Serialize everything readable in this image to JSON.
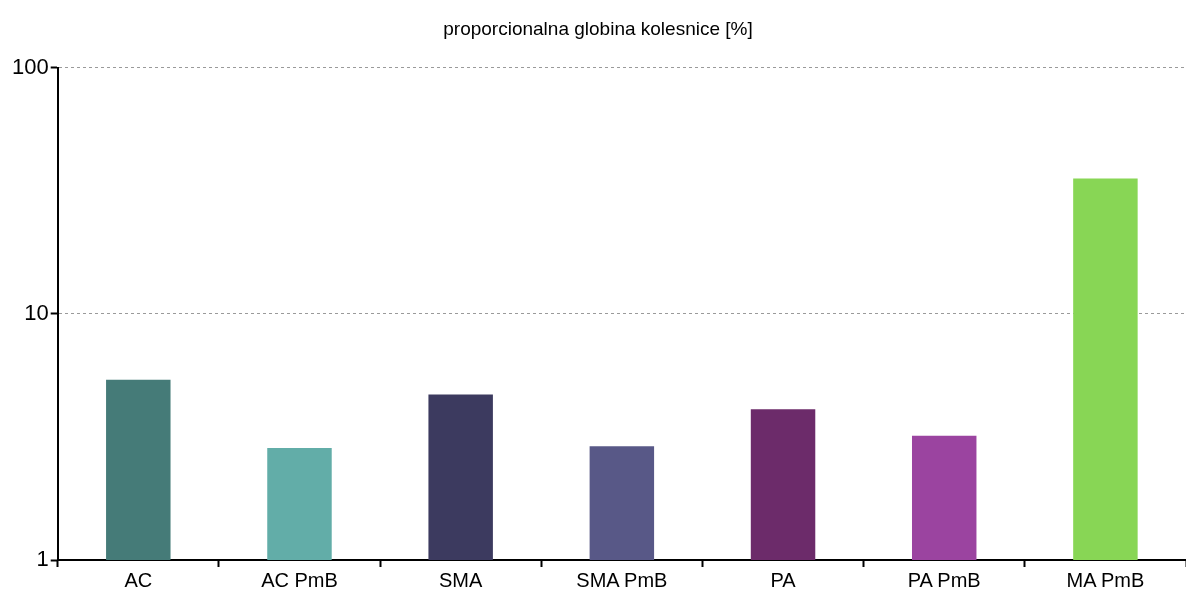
{
  "chart_data": {
    "type": "bar",
    "title": "proporcionalna globina kolesnice [%]",
    "categories": [
      "AC",
      "AC PmB",
      "SMA",
      "SMA PmB",
      "PA",
      "PA PmB",
      "MA PmB"
    ],
    "values": [
      5.4,
      2.85,
      4.7,
      2.9,
      4.1,
      3.2,
      35.5
    ],
    "colors": [
      "#457b78",
      "#62ada8",
      "#3c3a5f",
      "#585887",
      "#6c2b6a",
      "#9b44a0",
      "#88d655"
    ],
    "ylim": [
      1,
      100
    ],
    "yticks": [
      1,
      10,
      100
    ],
    "log": "y",
    "grid": "y"
  }
}
